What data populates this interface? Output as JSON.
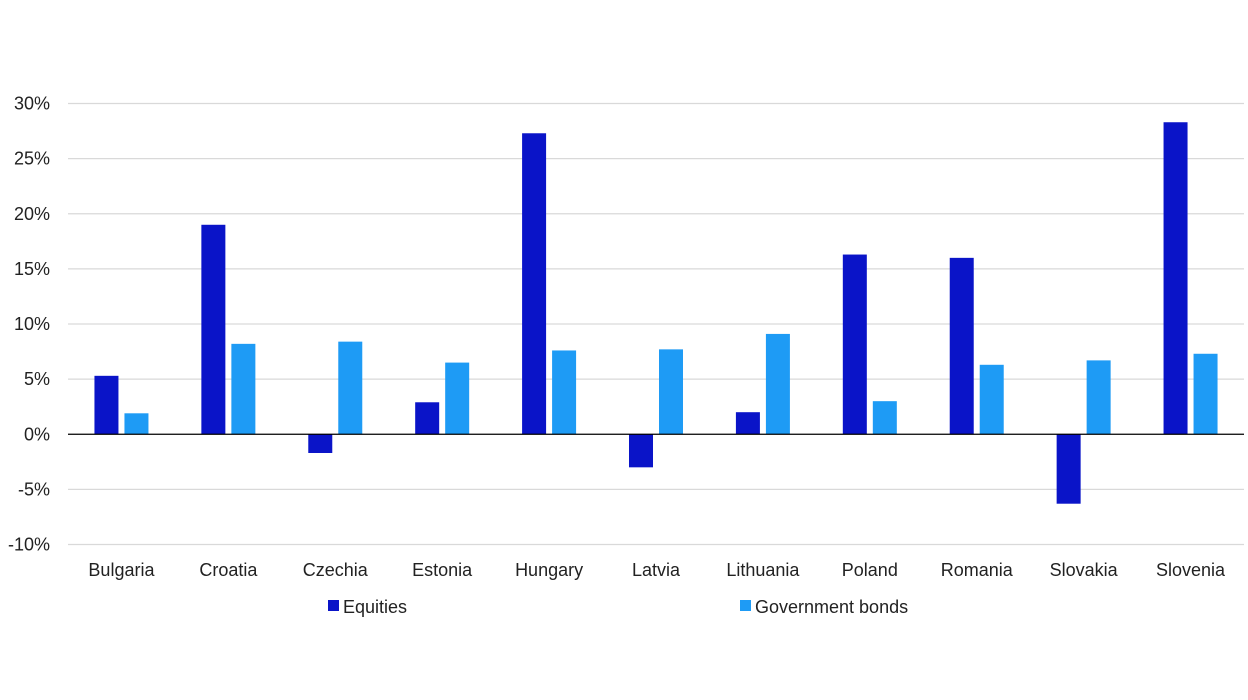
{
  "chart_data": {
    "type": "bar",
    "title": "",
    "xlabel": "",
    "ylabel": "",
    "categories": [
      "Bulgaria",
      "Croatia",
      "Czechia",
      "Estonia",
      "Hungary",
      "Latvia",
      "Lithuania",
      "Poland",
      "Romania",
      "Slovakia",
      "Slovenia"
    ],
    "series": [
      {
        "name": "Equities",
        "color": "#0a14c8",
        "values": [
          5.3,
          19.0,
          -1.7,
          2.9,
          27.3,
          -3.0,
          2.0,
          16.3,
          16.0,
          -6.3,
          28.3
        ]
      },
      {
        "name": "Government bonds",
        "color": "#1e9bf5",
        "values": [
          1.9,
          8.2,
          8.4,
          6.5,
          7.6,
          7.7,
          9.1,
          3.0,
          6.3,
          6.7,
          7.3
        ]
      }
    ],
    "ylim": [
      -10,
      30
    ],
    "yticks": [
      30,
      25,
      20,
      15,
      10,
      5,
      0,
      -5,
      -10
    ],
    "ytick_labels": [
      "30%",
      "25%",
      "20%",
      "15%",
      "10%",
      "5%",
      "0%",
      "-5%",
      "-10%"
    ],
    "grid": true,
    "legend_position": "bottom"
  }
}
